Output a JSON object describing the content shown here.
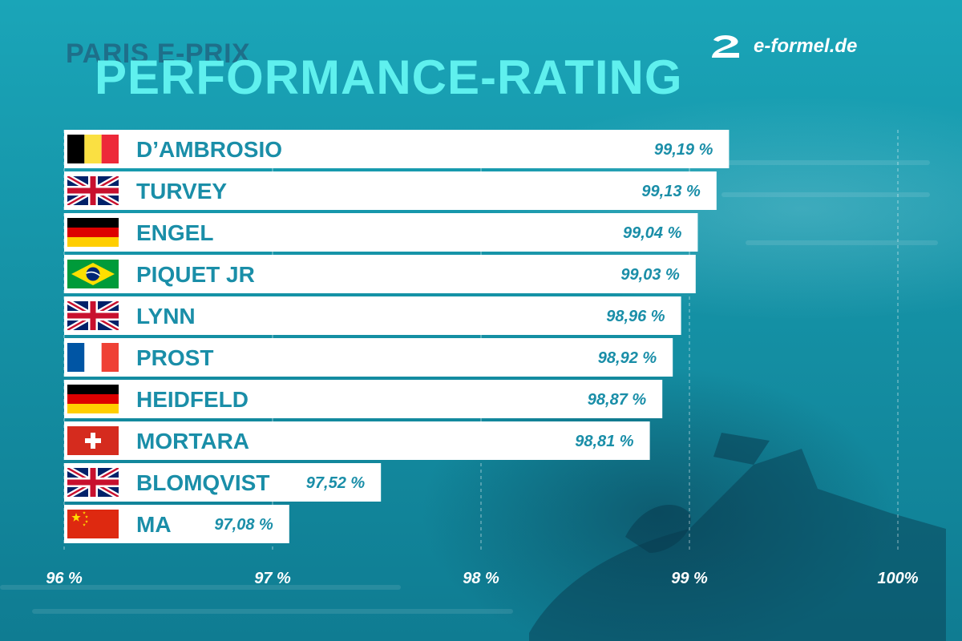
{
  "header": {
    "subtitle": "PARIS E-PRIX",
    "title": "PERFORMANCE-RATING",
    "brand": "e-formel.de",
    "brand_icon": "e-formel-logo-icon"
  },
  "colors": {
    "accent_title": "#5ff0ee",
    "subtitle": "#1e6f8a",
    "bar_fill": "#ffffff",
    "bar_text": "#1a8ea8",
    "tick_text": "#ffffff"
  },
  "chart_data": {
    "type": "bar",
    "orientation": "horizontal",
    "title": "PERFORMANCE-RATING",
    "subtitle": "PARIS E-PRIX",
    "categories": [
      "D’AMBROSIO",
      "TURVEY",
      "ENGEL",
      "PIQUET JR",
      "LYNN",
      "PROST",
      "HEIDFELD",
      "MORTARA",
      "BLOMQVIST",
      "MA"
    ],
    "flags": [
      "belgium",
      "united-kingdom",
      "germany",
      "brazil",
      "united-kingdom",
      "france",
      "germany",
      "switzerland",
      "united-kingdom",
      "china"
    ],
    "values": [
      99.19,
      99.13,
      99.04,
      99.03,
      98.96,
      98.92,
      98.87,
      98.81,
      97.52,
      97.08
    ],
    "value_labels": [
      "99,19 %",
      "99,13 %",
      "99,04 %",
      "99,03 %",
      "98,96 %",
      "98,92 %",
      "98,87 %",
      "98,81 %",
      "97,52 %",
      "97,08 %"
    ],
    "xlim": [
      96,
      100
    ],
    "xticks": [
      96,
      97,
      98,
      99,
      100
    ],
    "xtick_labels": [
      "96 %",
      "97 %",
      "98 %",
      "99 %",
      "100%"
    ],
    "grid": "vertical-dashed",
    "legend": "none"
  }
}
